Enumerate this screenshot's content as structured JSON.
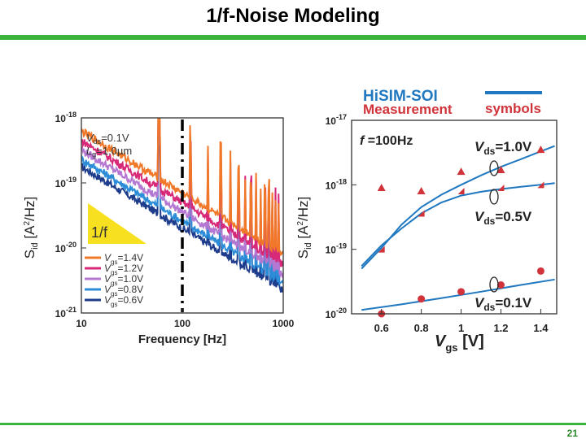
{
  "slide": {
    "title": "1/f-Noise Modeling",
    "page_number": "21"
  },
  "colors": {
    "accent_green": "#3cb43c",
    "model_blue": "#1f78c0",
    "measure_red": "#d0343a"
  },
  "chart_data": [
    {
      "type": "line",
      "xscale": "log",
      "yscale": "log",
      "xlim": [
        10,
        1000
      ],
      "ylim": [
        1e-21,
        1e-18
      ],
      "xticks": [
        "10",
        "100",
        "1000"
      ],
      "yticks": [
        {
          "base": "10",
          "exp": "-18"
        },
        {
          "base": "10",
          "exp": "-19"
        },
        {
          "base": "10",
          "exp": "-20"
        },
        {
          "base": "10",
          "exp": "-21"
        }
      ],
      "xlabel": "Frequency [Hz]",
      "ylabel": {
        "main": "S",
        "sub": "id",
        "unit_pre": " [A",
        "unit_sup": "2",
        "unit_post": "/Hz]"
      },
      "annotations": {
        "vds": {
          "var": "V",
          "sub": "ds",
          "rest": "=0.1V"
        },
        "lg": {
          "var": "L",
          "sub": "g",
          "rest": "=1.0µm"
        },
        "slope": "1/f"
      },
      "legend_placement": "bottom-left",
      "series": [
        {
          "label": {
            "var": "V",
            "sub": "gs",
            "rest": "=1.4V"
          },
          "color": "#f07828",
          "level": 7e-20
        },
        {
          "label": {
            "var": "V",
            "sub": "gs",
            "rest": "=1.2V"
          },
          "color": "#d82878",
          "level": 5e-20
        },
        {
          "label": {
            "var": "V",
            "sub": "gs",
            "rest": "=1.0V"
          },
          "color": "#b478d2",
          "level": 3.6e-20
        },
        {
          "label": {
            "var": "V",
            "sub": "gs",
            "rest": "=0.8V"
          },
          "color": "#2c8cd8",
          "level": 2.6e-20
        },
        {
          "label": {
            "var": "V",
            "sub": "gs",
            "rest": "=0.6V"
          },
          "color": "#1e3c8c",
          "level": 2e-20
        }
      ]
    },
    {
      "type": "scatter",
      "yscale": "log",
      "xlim": [
        0.45,
        1.48
      ],
      "ylim": [
        1e-20,
        1e-17
      ],
      "xticks": [
        "0.6",
        "0.8",
        "1",
        "1.2",
        "1.4"
      ],
      "yticks": [
        {
          "base": "10",
          "exp": "-17"
        },
        {
          "base": "10",
          "exp": "-18"
        },
        {
          "base": "10",
          "exp": "-19"
        },
        {
          "base": "10",
          "exp": "-20"
        }
      ],
      "xlabel": {
        "var": "V",
        "sub": "gs",
        "unit": " [V]"
      },
      "ylabel": {
        "main": "S",
        "sub": "id",
        "unit_pre": " [A",
        "unit_sup": "2",
        "unit_post": "/Hz]"
      },
      "legend": {
        "model": "HiSIM-SOI",
        "measurement": "Measurement",
        "measurement_style": "symbols"
      },
      "annotation": {
        "var": "f",
        "rest": " =100Hz"
      },
      "groups": [
        {
          "label": {
            "var": "V",
            "sub": "ds",
            "rest": "=1.0V"
          },
          "marker": "triangle",
          "x": [
            0.6,
            0.8,
            1.0,
            1.2,
            1.4
          ],
          "y": [
            9e-19,
            8e-19,
            1.6e-18,
            1.7e-18,
            3.5e-18
          ],
          "model_x": [
            0.5,
            0.6,
            0.7,
            0.8,
            0.9,
            1.0,
            1.1,
            1.2,
            1.3,
            1.4,
            1.47
          ],
          "model_y": [
            5e-20,
            1.05e-19,
            2.4e-19,
            4.5e-19,
            7e-19,
            1e-18,
            1.4e-18,
            1.9e-18,
            2.5e-18,
            3.3e-18,
            4e-18
          ]
        },
        {
          "label": {
            "var": "V",
            "sub": "ds",
            "rest": "=0.5V"
          },
          "marker": "half-square",
          "x": [
            0.6,
            0.8,
            1.0,
            1.2,
            1.4
          ],
          "y": [
            1e-19,
            3.6e-19,
            8e-19,
            9e-19,
            1e-18
          ],
          "model_x": [
            0.5,
            0.6,
            0.7,
            0.8,
            0.9,
            1.0,
            1.1,
            1.2,
            1.3,
            1.4,
            1.47
          ],
          "model_y": [
            5.5e-20,
            1.15e-19,
            2.1e-19,
            3.6e-19,
            5.3e-19,
            6.8e-19,
            7.8e-19,
            8.6e-19,
            9.3e-19,
            1e-18,
            1.06e-18
          ]
        },
        {
          "label": {
            "var": "V",
            "sub": "ds",
            "rest": "=0.1V"
          },
          "marker": "circle",
          "x": [
            0.6,
            0.8,
            1.0,
            1.2,
            1.4
          ],
          "y": [
            1e-20,
            1.7e-20,
            2.2e-20,
            2.8e-20,
            4.6e-20
          ],
          "model_x": [
            0.5,
            0.7,
            0.9,
            1.1,
            1.3,
            1.47
          ],
          "model_y": [
            1.15e-20,
            1.4e-20,
            1.75e-20,
            2.2e-20,
            2.8e-20,
            3.4e-20
          ]
        }
      ]
    }
  ]
}
